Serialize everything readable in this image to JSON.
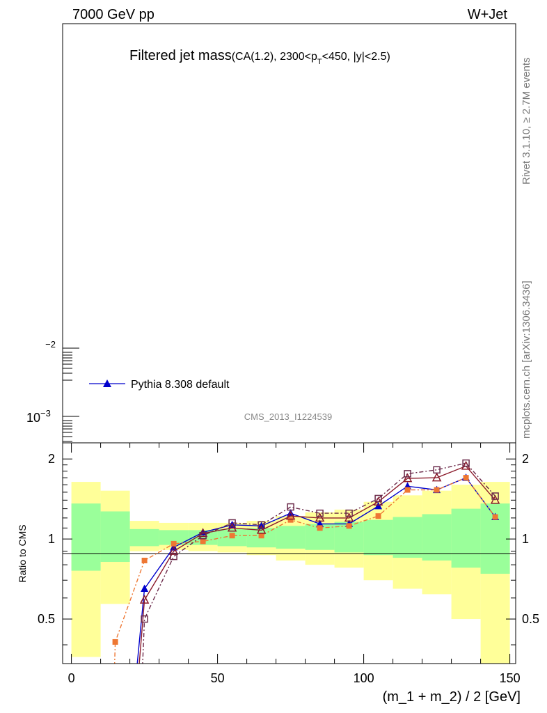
{
  "header": {
    "left": "7000 GeV pp",
    "right": "W+Jet"
  },
  "side_labels": {
    "rivet": "Rivet 3.1.10, ≥ 2.7M events",
    "mcplots": "mcplots.cern.ch [arXiv:1306.3436]"
  },
  "colors": {
    "band_inner": "#9aff9a",
    "band_outer": "#ffff99",
    "pythia": "#0000cc",
    "orange": "#ee7733",
    "darkred": "#8b1a2b",
    "plum": "#6b2a4a"
  },
  "chart_data": [
    {
      "type": "line",
      "panel": "main",
      "title_main": "Filtered jet mass",
      "title_sub_a": "(CA(1.2), 2300<p",
      "title_sub_b": "T",
      "title_sub_c": "<450, |y|<2.5)",
      "analysis_label": "CMS_2013_I1224539",
      "y_scale": "log",
      "y_tick_labels": {
        "upper_base": "",
        "upper_exp": "−2",
        "lower_base": "10",
        "lower_exp": "−3"
      },
      "legend": {
        "placement": "lower-left",
        "entries": [
          "Pythia 8.308 default"
        ]
      }
    },
    {
      "type": "line",
      "panel": "ratio",
      "ylabel": "Ratio to CMS",
      "xlabel": "(m_1 + m_2) / 2 [GeV]",
      "xlim": [
        -3,
        152
      ],
      "ylim": [
        0.34,
        2.3
      ],
      "x_ticks": [
        "0",
        "50",
        "100",
        "150"
      ],
      "y_ticks": [
        "0.5",
        "1",
        "2"
      ],
      "reference_line": 1,
      "bands": [
        {
          "x0": 0,
          "x1": 10,
          "outer": [
            0.36,
            1.64
          ],
          "inner": [
            0.76,
            1.36
          ]
        },
        {
          "x0": 10,
          "x1": 20,
          "outer": [
            0.57,
            1.52
          ],
          "inner": [
            0.82,
            1.27
          ]
        },
        {
          "x0": 20,
          "x1": 30,
          "outer": [
            0.9,
            1.17
          ],
          "inner": [
            0.94,
            1.09
          ]
        },
        {
          "x0": 30,
          "x1": 40,
          "outer": [
            0.91,
            1.15
          ],
          "inner": [
            0.95,
            1.08
          ]
        },
        {
          "x0": 40,
          "x1": 50,
          "outer": [
            0.9,
            1.15
          ],
          "inner": [
            0.95,
            1.08
          ]
        },
        {
          "x0": 50,
          "x1": 60,
          "outer": [
            0.89,
            1.15
          ],
          "inner": [
            0.94,
            1.09
          ]
        },
        {
          "x0": 60,
          "x1": 70,
          "outer": [
            0.87,
            1.17
          ],
          "inner": [
            0.93,
            1.1
          ]
        },
        {
          "x0": 70,
          "x1": 80,
          "outer": [
            0.83,
            1.22
          ],
          "inner": [
            0.92,
            1.12
          ]
        },
        {
          "x0": 80,
          "x1": 90,
          "outer": [
            0.8,
            1.26
          ],
          "inner": [
            0.91,
            1.14
          ]
        },
        {
          "x0": 90,
          "x1": 100,
          "outer": [
            0.78,
            1.29
          ],
          "inner": [
            0.89,
            1.16
          ]
        },
        {
          "x0": 100,
          "x1": 110,
          "outer": [
            0.7,
            1.38
          ],
          "inner": [
            0.87,
            1.18
          ]
        },
        {
          "x0": 110,
          "x1": 120,
          "outer": [
            0.65,
            1.46
          ],
          "inner": [
            0.85,
            1.21
          ]
        },
        {
          "x0": 120,
          "x1": 130,
          "outer": [
            0.62,
            1.52
          ],
          "inner": [
            0.83,
            1.24
          ]
        },
        {
          "x0": 130,
          "x1": 140,
          "outer": [
            0.5,
            1.6
          ],
          "inner": [
            0.78,
            1.3
          ]
        },
        {
          "x0": 140,
          "x1": 150,
          "outer": [
            0.34,
            1.64
          ],
          "inner": [
            0.74,
            1.36
          ]
        }
      ],
      "series": [
        {
          "name": "Pythia 8.308 default",
          "key": "pythia",
          "marker": "triangle",
          "dash": "",
          "x": [
            25,
            35,
            45,
            55,
            65,
            75,
            85,
            95,
            105,
            115,
            125,
            135,
            145
          ],
          "y": [
            0.65,
            0.93,
            1.06,
            1.13,
            1.12,
            1.25,
            1.14,
            1.14,
            1.33,
            1.58,
            1.53,
            1.7,
            1.21
          ],
          "lead_in": [
            20.5,
            0.2
          ]
        },
        {
          "key": "orange",
          "marker": "square-filled",
          "dash": "6,3,2,3",
          "x": [
            15,
            25,
            35,
            45,
            55,
            65,
            75,
            85,
            95,
            105,
            115,
            125,
            135,
            145
          ],
          "y": [
            0.41,
            0.83,
            0.96,
            0.98,
            1.03,
            1.03,
            1.18,
            1.1,
            1.12,
            1.22,
            1.53,
            1.53,
            1.7,
            1.21
          ],
          "lead_in": [
            14.2,
            0.2
          ]
        },
        {
          "key": "darkred",
          "marker": "triangle-open",
          "dash": "",
          "x": [
            25,
            35,
            45,
            55,
            65,
            75,
            85,
            95,
            105,
            115,
            125,
            135,
            145
          ],
          "y": [
            0.59,
            0.9,
            1.05,
            1.1,
            1.08,
            1.22,
            1.2,
            1.2,
            1.38,
            1.69,
            1.7,
            1.88,
            1.4
          ],
          "lead_in": [
            21.5,
            0.2
          ]
        },
        {
          "key": "plum",
          "marker": "square-open",
          "dash": "6,3,2,3",
          "x": [
            25,
            35,
            45,
            55,
            65,
            75,
            85,
            95,
            105,
            115,
            125,
            135,
            145
          ],
          "y": [
            0.5,
            0.86,
            1.03,
            1.15,
            1.13,
            1.32,
            1.25,
            1.25,
            1.42,
            1.76,
            1.82,
            1.93,
            1.45
          ],
          "lead_in": [
            23.5,
            0.2
          ]
        }
      ]
    }
  ]
}
